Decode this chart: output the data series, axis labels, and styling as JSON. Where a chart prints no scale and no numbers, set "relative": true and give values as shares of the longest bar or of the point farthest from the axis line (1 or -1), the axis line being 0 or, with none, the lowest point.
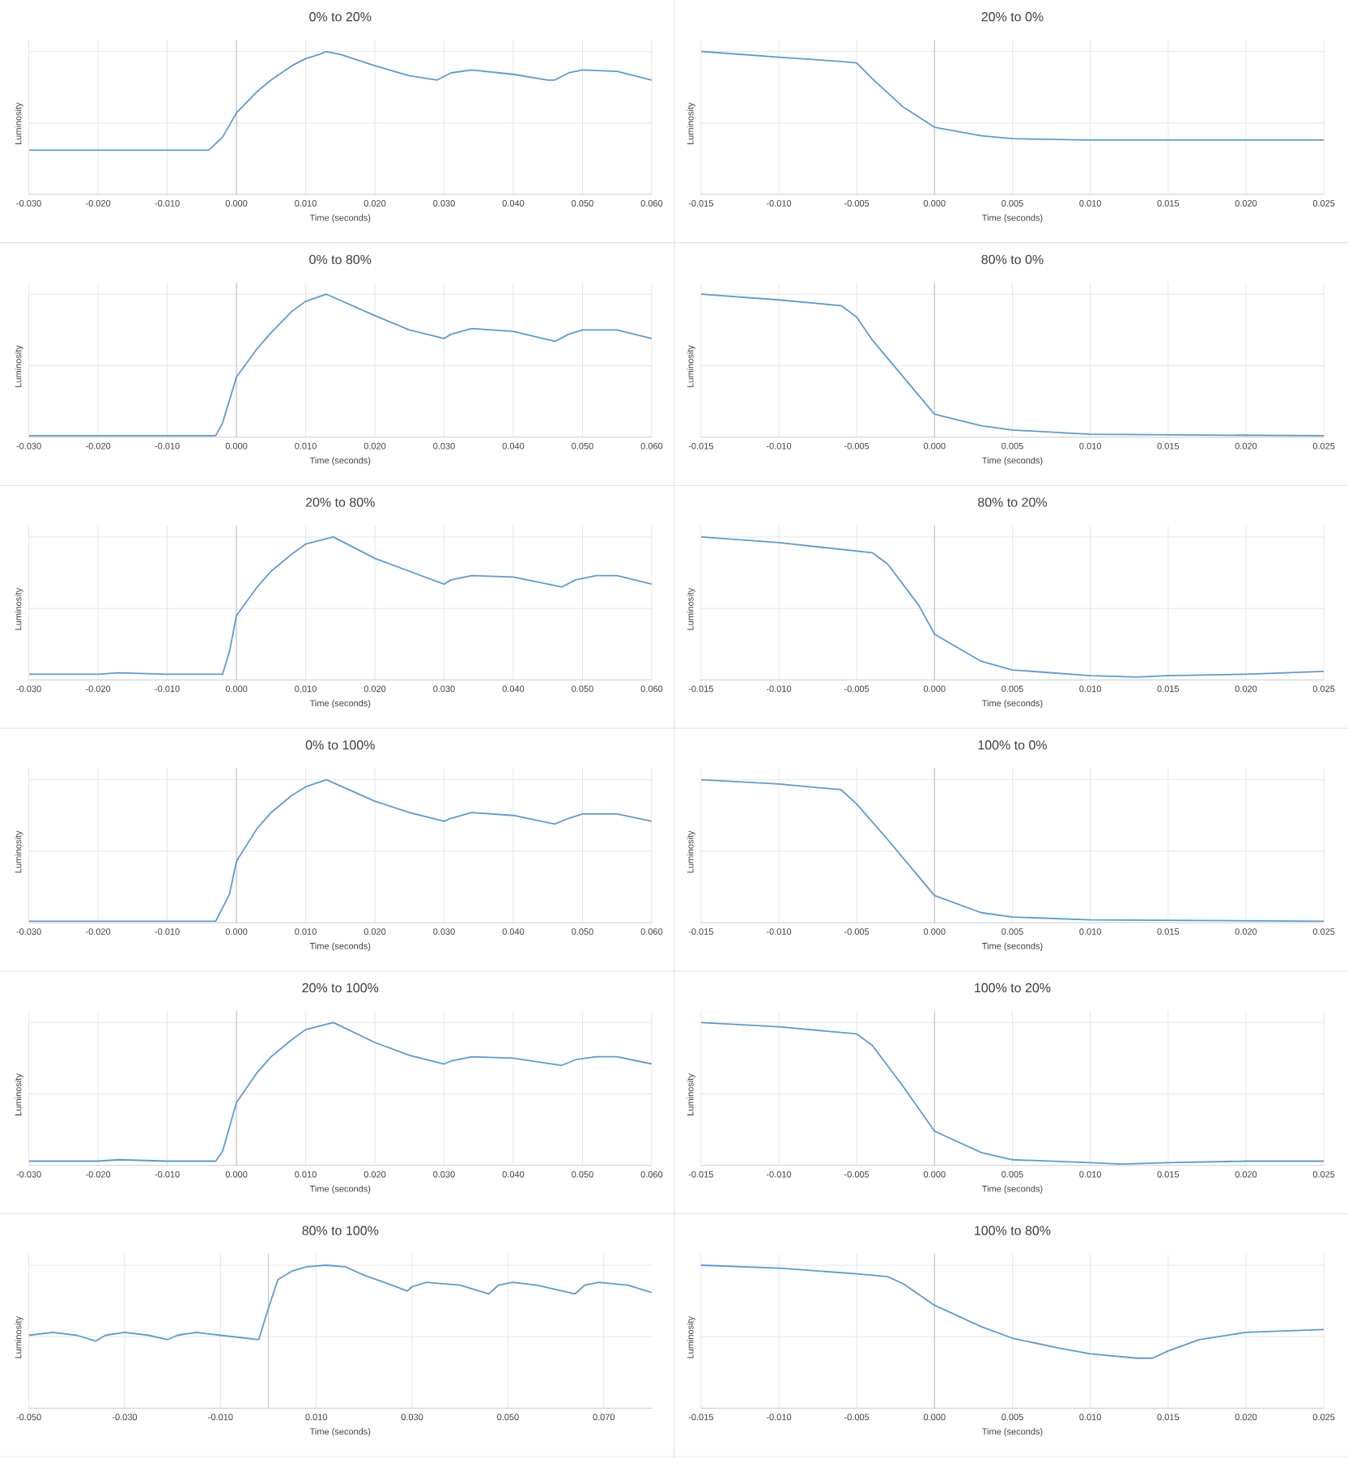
{
  "chart_data": [
    {
      "type": "line",
      "title": "0% to 20%",
      "xlabel": "Time (seconds)",
      "ylabel": "Luminosity",
      "relative": true,
      "grid": true,
      "color": "#5b9bd5",
      "xlim": [
        -0.03,
        0.06
      ],
      "xticks": [
        {
          "value": -0.03,
          "label": "-0.030"
        },
        {
          "value": -0.02,
          "label": "-0.020"
        },
        {
          "value": -0.01,
          "label": "-0.010"
        },
        {
          "value": 0,
          "label": "0.000"
        },
        {
          "value": 0.01,
          "label": "0.010"
        },
        {
          "value": 0.02,
          "label": "0.020"
        },
        {
          "value": 0.03,
          "label": "0.030"
        },
        {
          "value": 0.04,
          "label": "0.040"
        },
        {
          "value": 0.05,
          "label": "0.050"
        },
        {
          "value": 0.06,
          "label": "0.060"
        }
      ],
      "x": [
        -0.03,
        -0.02,
        -0.01,
        -0.004,
        -0.002,
        0.0,
        0.003,
        0.005,
        0.008,
        0.01,
        0.012,
        0.013,
        0.015,
        0.02,
        0.025,
        0.029,
        0.031,
        0.034,
        0.04,
        0.045,
        0.046,
        0.048,
        0.05,
        0.055,
        0.06
      ],
      "values": [
        0.31,
        0.31,
        0.31,
        0.31,
        0.4,
        0.57,
        0.72,
        0.8,
        0.9,
        0.95,
        0.98,
        1.0,
        0.98,
        0.9,
        0.83,
        0.8,
        0.85,
        0.87,
        0.84,
        0.8,
        0.8,
        0.85,
        0.87,
        0.86,
        0.8
      ]
    },
    {
      "type": "line",
      "title": "20% to 0%",
      "xlabel": "Time (seconds)",
      "ylabel": "Luminosity",
      "relative": true,
      "grid": true,
      "color": "#5b9bd5",
      "xlim": [
        -0.015,
        0.025
      ],
      "xticks": [
        {
          "value": -0.015,
          "label": "-0.015"
        },
        {
          "value": -0.01,
          "label": "-0.010"
        },
        {
          "value": -0.005,
          "label": "-0.005"
        },
        {
          "value": 0,
          "label": "0.000"
        },
        {
          "value": 0.005,
          "label": "0.005"
        },
        {
          "value": 0.01,
          "label": "0.010"
        },
        {
          "value": 0.015,
          "label": "0.015"
        },
        {
          "value": 0.02,
          "label": "0.020"
        },
        {
          "value": 0.025,
          "label": "0.025"
        }
      ],
      "x": [
        -0.015,
        -0.01,
        -0.006,
        -0.005,
        -0.004,
        -0.002,
        0.0,
        0.003,
        0.005,
        0.01,
        0.025
      ],
      "values": [
        1.0,
        0.96,
        0.93,
        0.92,
        0.81,
        0.61,
        0.47,
        0.41,
        0.39,
        0.38,
        0.38
      ]
    },
    {
      "type": "line",
      "title": "0% to 80%",
      "xlabel": "Time (seconds)",
      "ylabel": "Luminosity",
      "relative": true,
      "grid": true,
      "color": "#5b9bd5",
      "xlim": [
        -0.03,
        0.06
      ],
      "xticks": [
        {
          "value": -0.03,
          "label": "-0.030"
        },
        {
          "value": -0.02,
          "label": "-0.020"
        },
        {
          "value": -0.01,
          "label": "-0.010"
        },
        {
          "value": 0,
          "label": "0.000"
        },
        {
          "value": 0.01,
          "label": "0.010"
        },
        {
          "value": 0.02,
          "label": "0.020"
        },
        {
          "value": 0.03,
          "label": "0.030"
        },
        {
          "value": 0.04,
          "label": "0.040"
        },
        {
          "value": 0.05,
          "label": "0.050"
        },
        {
          "value": 0.06,
          "label": "0.060"
        }
      ],
      "x": [
        -0.03,
        -0.02,
        -0.01,
        -0.003,
        -0.002,
        0.0,
        0.003,
        0.005,
        0.008,
        0.01,
        0.013,
        0.02,
        0.025,
        0.03,
        0.031,
        0.034,
        0.04,
        0.046,
        0.048,
        0.05,
        0.055,
        0.06
      ],
      "values": [
        0.01,
        0.01,
        0.01,
        0.01,
        0.1,
        0.42,
        0.62,
        0.73,
        0.88,
        0.95,
        1.0,
        0.85,
        0.75,
        0.69,
        0.72,
        0.76,
        0.74,
        0.67,
        0.72,
        0.75,
        0.75,
        0.69
      ]
    },
    {
      "type": "line",
      "title": "80% to 0%",
      "xlabel": "Time (seconds)",
      "ylabel": "Luminosity",
      "relative": true,
      "grid": true,
      "color": "#5b9bd5",
      "xlim": [
        -0.015,
        0.025
      ],
      "xticks": [
        {
          "value": -0.015,
          "label": "-0.015"
        },
        {
          "value": -0.01,
          "label": "-0.010"
        },
        {
          "value": -0.005,
          "label": "-0.005"
        },
        {
          "value": 0,
          "label": "0.000"
        },
        {
          "value": 0.005,
          "label": "0.005"
        },
        {
          "value": 0.01,
          "label": "0.010"
        },
        {
          "value": 0.015,
          "label": "0.015"
        },
        {
          "value": 0.02,
          "label": "0.020"
        },
        {
          "value": 0.025,
          "label": "0.025"
        }
      ],
      "x": [
        -0.015,
        -0.01,
        -0.006,
        -0.005,
        -0.004,
        -0.002,
        0.0,
        0.003,
        0.005,
        0.01,
        0.025
      ],
      "values": [
        1.0,
        0.96,
        0.92,
        0.84,
        0.68,
        0.42,
        0.16,
        0.08,
        0.05,
        0.02,
        0.01
      ]
    },
    {
      "type": "line",
      "title": "20% to 80%",
      "xlabel": "Time (seconds)",
      "ylabel": "Luminosity",
      "relative": true,
      "grid": true,
      "color": "#5b9bd5",
      "xlim": [
        -0.03,
        0.06
      ],
      "xticks": [
        {
          "value": -0.03,
          "label": "-0.030"
        },
        {
          "value": -0.02,
          "label": "-0.020"
        },
        {
          "value": -0.01,
          "label": "-0.010"
        },
        {
          "value": 0,
          "label": "0.000"
        },
        {
          "value": 0.01,
          "label": "0.010"
        },
        {
          "value": 0.02,
          "label": "0.020"
        },
        {
          "value": 0.03,
          "label": "0.030"
        },
        {
          "value": 0.04,
          "label": "0.040"
        },
        {
          "value": 0.05,
          "label": "0.050"
        },
        {
          "value": 0.06,
          "label": "0.060"
        }
      ],
      "x": [
        -0.03,
        -0.02,
        -0.017,
        -0.01,
        -0.002,
        -0.001,
        0.0,
        0.003,
        0.005,
        0.008,
        0.01,
        0.014,
        0.02,
        0.025,
        0.03,
        0.031,
        0.034,
        0.04,
        0.047,
        0.049,
        0.052,
        0.055,
        0.06
      ],
      "values": [
        0.04,
        0.04,
        0.05,
        0.04,
        0.04,
        0.2,
        0.45,
        0.65,
        0.76,
        0.88,
        0.95,
        1.0,
        0.85,
        0.76,
        0.67,
        0.7,
        0.73,
        0.72,
        0.65,
        0.7,
        0.73,
        0.73,
        0.67
      ]
    },
    {
      "type": "line",
      "title": "80% to 20%",
      "xlabel": "Time (seconds)",
      "ylabel": "Luminosity",
      "relative": true,
      "grid": true,
      "color": "#5b9bd5",
      "xlim": [
        -0.015,
        0.025
      ],
      "xticks": [
        {
          "value": -0.015,
          "label": "-0.015"
        },
        {
          "value": -0.01,
          "label": "-0.010"
        },
        {
          "value": -0.005,
          "label": "-0.005"
        },
        {
          "value": 0,
          "label": "0.000"
        },
        {
          "value": 0.005,
          "label": "0.005"
        },
        {
          "value": 0.01,
          "label": "0.010"
        },
        {
          "value": 0.015,
          "label": "0.015"
        },
        {
          "value": 0.02,
          "label": "0.020"
        },
        {
          "value": 0.025,
          "label": "0.025"
        }
      ],
      "x": [
        -0.015,
        -0.01,
        -0.004,
        -0.003,
        -0.001,
        0.0,
        0.003,
        0.005,
        0.01,
        0.013,
        0.015,
        0.02,
        0.025
      ],
      "values": [
        1.0,
        0.96,
        0.89,
        0.81,
        0.52,
        0.32,
        0.13,
        0.07,
        0.03,
        0.02,
        0.03,
        0.04,
        0.06
      ]
    },
    {
      "type": "line",
      "title": "0% to 100%",
      "xlabel": "Time (seconds)",
      "ylabel": "Luminosity",
      "relative": true,
      "grid": true,
      "color": "#5b9bd5",
      "xlim": [
        -0.03,
        0.06
      ],
      "xticks": [
        {
          "value": -0.03,
          "label": "-0.030"
        },
        {
          "value": -0.02,
          "label": "-0.020"
        },
        {
          "value": -0.01,
          "label": "-0.010"
        },
        {
          "value": 0,
          "label": "0.000"
        },
        {
          "value": 0.01,
          "label": "0.010"
        },
        {
          "value": 0.02,
          "label": "0.020"
        },
        {
          "value": 0.03,
          "label": "0.030"
        },
        {
          "value": 0.04,
          "label": "0.040"
        },
        {
          "value": 0.05,
          "label": "0.050"
        },
        {
          "value": 0.06,
          "label": "0.060"
        }
      ],
      "x": [
        -0.03,
        -0.02,
        -0.01,
        -0.003,
        -0.001,
        0.0,
        0.003,
        0.005,
        0.008,
        0.01,
        0.013,
        0.02,
        0.025,
        0.03,
        0.031,
        0.034,
        0.04,
        0.046,
        0.048,
        0.05,
        0.055,
        0.06
      ],
      "values": [
        0.01,
        0.01,
        0.01,
        0.01,
        0.2,
        0.43,
        0.66,
        0.77,
        0.89,
        0.95,
        1.0,
        0.85,
        0.77,
        0.71,
        0.73,
        0.77,
        0.75,
        0.69,
        0.73,
        0.76,
        0.76,
        0.71
      ]
    },
    {
      "type": "line",
      "title": "100% to 0%",
      "xlabel": "Time (seconds)",
      "ylabel": "Luminosity",
      "relative": true,
      "grid": true,
      "color": "#5b9bd5",
      "xlim": [
        -0.015,
        0.025
      ],
      "xticks": [
        {
          "value": -0.015,
          "label": "-0.015"
        },
        {
          "value": -0.01,
          "label": "-0.010"
        },
        {
          "value": -0.005,
          "label": "-0.005"
        },
        {
          "value": 0,
          "label": "0.000"
        },
        {
          "value": 0.005,
          "label": "0.005"
        },
        {
          "value": 0.01,
          "label": "0.010"
        },
        {
          "value": 0.015,
          "label": "0.015"
        },
        {
          "value": 0.02,
          "label": "0.020"
        },
        {
          "value": 0.025,
          "label": "0.025"
        }
      ],
      "x": [
        -0.015,
        -0.01,
        -0.006,
        -0.005,
        -0.003,
        -0.001,
        0.0,
        0.003,
        0.005,
        0.01,
        0.025
      ],
      "values": [
        1.0,
        0.97,
        0.93,
        0.83,
        0.58,
        0.32,
        0.19,
        0.07,
        0.04,
        0.02,
        0.01
      ]
    },
    {
      "type": "line",
      "title": "20% to 100%",
      "xlabel": "Time (seconds)",
      "ylabel": "Luminosity",
      "relative": true,
      "grid": true,
      "color": "#5b9bd5",
      "xlim": [
        -0.03,
        0.06
      ],
      "xticks": [
        {
          "value": -0.03,
          "label": "-0.030"
        },
        {
          "value": -0.02,
          "label": "-0.020"
        },
        {
          "value": -0.01,
          "label": "-0.010"
        },
        {
          "value": 0,
          "label": "0.000"
        },
        {
          "value": 0.01,
          "label": "0.010"
        },
        {
          "value": 0.02,
          "label": "0.020"
        },
        {
          "value": 0.03,
          "label": "0.030"
        },
        {
          "value": 0.04,
          "label": "0.040"
        },
        {
          "value": 0.05,
          "label": "0.050"
        },
        {
          "value": 0.06,
          "label": "0.060"
        }
      ],
      "x": [
        -0.03,
        -0.02,
        -0.017,
        -0.01,
        -0.003,
        -0.002,
        0.0,
        0.003,
        0.005,
        0.008,
        0.01,
        0.014,
        0.02,
        0.025,
        0.03,
        0.031,
        0.034,
        0.04,
        0.047,
        0.049,
        0.052,
        0.055,
        0.06
      ],
      "values": [
        0.03,
        0.03,
        0.04,
        0.03,
        0.03,
        0.1,
        0.44,
        0.65,
        0.76,
        0.88,
        0.95,
        1.0,
        0.86,
        0.77,
        0.71,
        0.73,
        0.76,
        0.75,
        0.7,
        0.74,
        0.76,
        0.76,
        0.71
      ]
    },
    {
      "type": "line",
      "title": "100% to 20%",
      "xlabel": "Time (seconds)",
      "ylabel": "Luminosity",
      "relative": true,
      "grid": true,
      "color": "#5b9bd5",
      "xlim": [
        -0.015,
        0.025
      ],
      "xticks": [
        {
          "value": -0.015,
          "label": "-0.015"
        },
        {
          "value": -0.01,
          "label": "-0.010"
        },
        {
          "value": -0.005,
          "label": "-0.005"
        },
        {
          "value": 0,
          "label": "0.000"
        },
        {
          "value": 0.005,
          "label": "0.005"
        },
        {
          "value": 0.01,
          "label": "0.010"
        },
        {
          "value": 0.015,
          "label": "0.015"
        },
        {
          "value": 0.02,
          "label": "0.020"
        },
        {
          "value": 0.025,
          "label": "0.025"
        }
      ],
      "x": [
        -0.015,
        -0.01,
        -0.005,
        -0.004,
        -0.002,
        0.0,
        0.003,
        0.005,
        0.01,
        0.012,
        0.015,
        0.02,
        0.025
      ],
      "values": [
        1.0,
        0.97,
        0.92,
        0.84,
        0.55,
        0.24,
        0.09,
        0.04,
        0.02,
        0.01,
        0.02,
        0.03,
        0.03
      ]
    },
    {
      "type": "line",
      "title": "80% to 100%",
      "xlabel": "Time (seconds)",
      "ylabel": "Luminosity",
      "relative": true,
      "grid": true,
      "color": "#5b9bd5",
      "xlim": [
        -0.05,
        0.08
      ],
      "xticks": [
        {
          "value": -0.05,
          "label": "-0.050"
        },
        {
          "value": -0.03,
          "label": "-0.030"
        },
        {
          "value": -0.01,
          "label": "-0.010"
        },
        {
          "value": 0.01,
          "label": "0.010"
        },
        {
          "value": 0.03,
          "label": "0.030"
        },
        {
          "value": 0.05,
          "label": "0.050"
        },
        {
          "value": 0.07,
          "label": "0.070"
        }
      ],
      "x": [
        -0.05,
        -0.045,
        -0.04,
        -0.036,
        -0.034,
        -0.03,
        -0.025,
        -0.021,
        -0.019,
        -0.015,
        -0.01,
        -0.002,
        0.0,
        0.002,
        0.005,
        0.008,
        0.012,
        0.016,
        0.02,
        0.025,
        0.029,
        0.03,
        0.033,
        0.04,
        0.046,
        0.048,
        0.051,
        0.056,
        0.064,
        0.066,
        0.069,
        0.075,
        0.08
      ],
      "values": [
        0.51,
        0.53,
        0.51,
        0.47,
        0.51,
        0.53,
        0.51,
        0.48,
        0.51,
        0.53,
        0.51,
        0.48,
        0.7,
        0.9,
        0.96,
        0.99,
        1.0,
        0.99,
        0.93,
        0.87,
        0.82,
        0.85,
        0.88,
        0.86,
        0.8,
        0.86,
        0.88,
        0.86,
        0.8,
        0.86,
        0.88,
        0.86,
        0.81
      ]
    },
    {
      "type": "line",
      "title": "100% to 80%",
      "xlabel": "Time (seconds)",
      "ylabel": "Luminosity",
      "relative": true,
      "grid": true,
      "color": "#5b9bd5",
      "xlim": [
        -0.015,
        0.025
      ],
      "xticks": [
        {
          "value": -0.015,
          "label": "-0.015"
        },
        {
          "value": -0.01,
          "label": "-0.010"
        },
        {
          "value": -0.005,
          "label": "-0.005"
        },
        {
          "value": 0,
          "label": "0.000"
        },
        {
          "value": 0.005,
          "label": "0.005"
        },
        {
          "value": 0.01,
          "label": "0.010"
        },
        {
          "value": 0.015,
          "label": "0.015"
        },
        {
          "value": 0.02,
          "label": "0.020"
        },
        {
          "value": 0.025,
          "label": "0.025"
        }
      ],
      "x": [
        -0.015,
        -0.01,
        -0.005,
        -0.003,
        -0.002,
        0.0,
        0.003,
        0.005,
        0.008,
        0.01,
        0.013,
        0.014,
        0.015,
        0.017,
        0.02,
        0.025
      ],
      "values": [
        1.0,
        0.98,
        0.94,
        0.92,
        0.87,
        0.72,
        0.57,
        0.49,
        0.42,
        0.38,
        0.35,
        0.35,
        0.4,
        0.48,
        0.53,
        0.55
      ]
    }
  ]
}
